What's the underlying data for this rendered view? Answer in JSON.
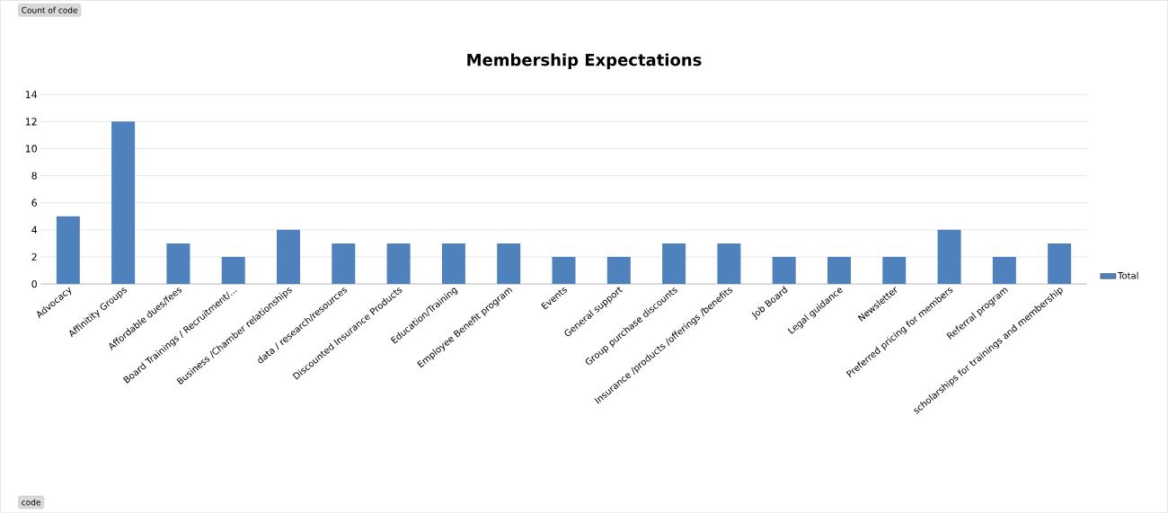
{
  "chart_data": {
    "type": "bar",
    "title": "Membership Expectations",
    "categories": [
      "Advocacy",
      "Affinitity Groups",
      "Affordable dues/fees",
      "Board Trainings / Recruitment/...",
      "Business /Chamber relationships",
      "data / research/resources",
      "Discounted Insurance Products",
      "Education/Training",
      "Employee Benefit program",
      "Events",
      "General support",
      "Group purchase discounts",
      "Insurance /products /offerings /benefits",
      "Job Board",
      "Legal guidance",
      "Newsletter",
      "Preferred pricing for members",
      "Referral program",
      "scholarships for trainings and membership"
    ],
    "series": [
      {
        "name": "Total",
        "color": "#4f81bd",
        "values": [
          5,
          12,
          3,
          2,
          4,
          3,
          3,
          3,
          3,
          2,
          2,
          3,
          3,
          2,
          2,
          2,
          4,
          2,
          3
        ]
      }
    ],
    "ylim": [
      0,
      14
    ],
    "yticks": [
      0,
      2,
      4,
      6,
      8,
      10,
      12,
      14
    ],
    "grid": "y",
    "legend": "right",
    "annotations": [
      "Count of code",
      "code"
    ]
  }
}
